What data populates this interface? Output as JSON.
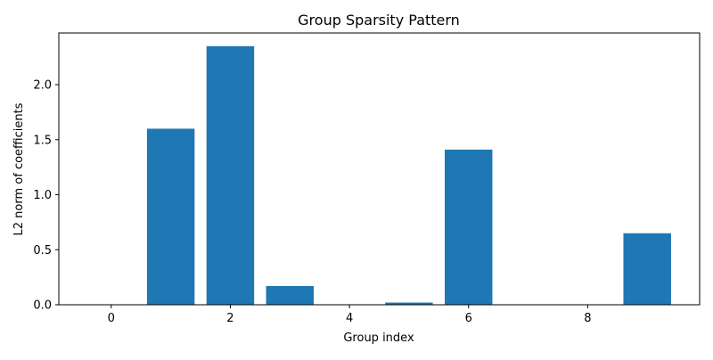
{
  "chart_data": {
    "type": "bar",
    "title": "Group Sparsity Pattern",
    "xlabel": "Group index",
    "ylabel": "L2 norm of coefficients",
    "categories": [
      0,
      1,
      2,
      3,
      4,
      5,
      6,
      7,
      8,
      9
    ],
    "values": [
      0.0,
      1.6,
      2.35,
      0.17,
      0.0,
      0.02,
      1.41,
      0.0,
      0.0,
      0.65
    ],
    "xlim": [
      -0.88,
      9.88
    ],
    "ylim": [
      0.0,
      2.47
    ],
    "xticks": [
      0,
      2,
      4,
      6,
      8
    ],
    "yticks": [
      0.0,
      0.5,
      1.0,
      1.5,
      2.0
    ],
    "xtick_labels": [
      "0",
      "2",
      "4",
      "6",
      "8"
    ],
    "ytick_labels": [
      "0.0",
      "0.5",
      "1.0",
      "1.5",
      "2.0"
    ],
    "grid": false,
    "legend": "none",
    "bar_color": "#1f77b4"
  }
}
